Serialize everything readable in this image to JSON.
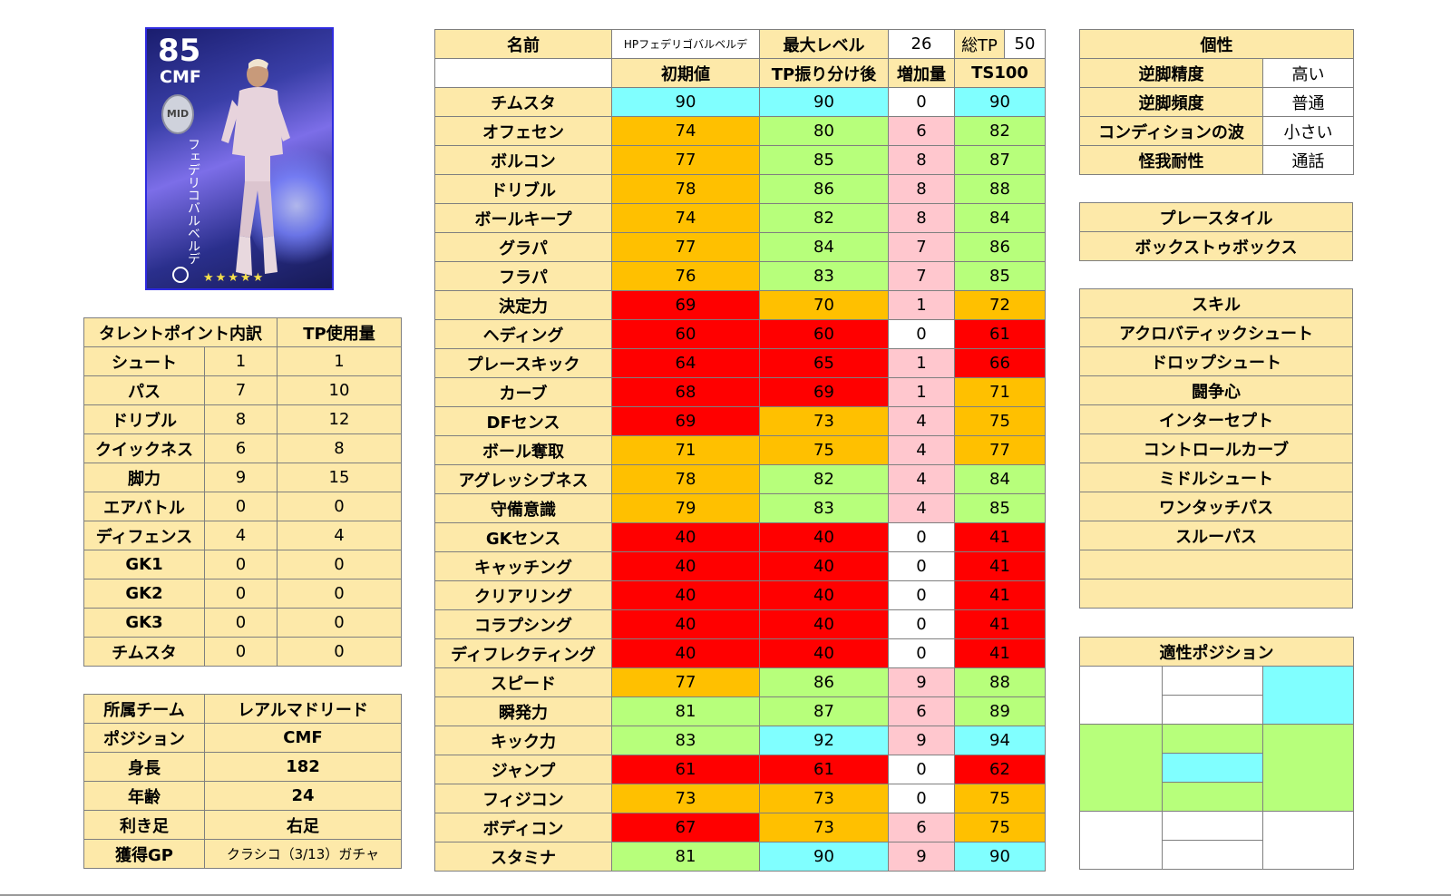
{
  "card": {
    "rating": "85",
    "position": "CMF",
    "badge": "MID",
    "vertical_name": "フェデリコバルベルデ",
    "stars": "★★★★★"
  },
  "talent": {
    "headers": [
      "タレントポイント内訳",
      "TP使用量"
    ],
    "rows": [
      [
        "シュート",
        "1",
        "1"
      ],
      [
        "パス",
        "7",
        "10"
      ],
      [
        "ドリブル",
        "8",
        "12"
      ],
      [
        "クイックネス",
        "6",
        "8"
      ],
      [
        "脚力",
        "9",
        "15"
      ],
      [
        "エアバトル",
        "0",
        "0"
      ],
      [
        "ディフェンス",
        "4",
        "4"
      ],
      [
        "GK1",
        "0",
        "0"
      ],
      [
        "GK2",
        "0",
        "0"
      ],
      [
        "GK3",
        "0",
        "0"
      ],
      [
        "チムスタ",
        "0",
        "0"
      ]
    ]
  },
  "profile": {
    "rows": [
      [
        "所属チーム",
        "レアルマドリード"
      ],
      [
        "ポジション",
        "CMF"
      ],
      [
        "身長",
        "182"
      ],
      [
        "年齢",
        "24"
      ],
      [
        "利き足",
        "右足"
      ],
      [
        "獲得GP",
        "クラシコ（3/13）ガチャ"
      ]
    ]
  },
  "stats_header": {
    "name_label": "名前",
    "name_value": "HPフェデリゴバルベルデ",
    "max_level_label": "最大レベル",
    "max_level_value": "26",
    "total_tp_label": "総TP",
    "total_tp_value": "50",
    "col_initial": "初期値",
    "col_after": "TP振り分け後",
    "col_increase": "増加量",
    "col_ts100": "TS100"
  },
  "stats": [
    {
      "name": "チムスタ",
      "initial": "90",
      "after": "90",
      "inc": "0",
      "ts": "90",
      "c": [
        "cyan",
        "cyan",
        "white",
        "cyan"
      ]
    },
    {
      "name": "オフェセン",
      "initial": "74",
      "after": "80",
      "inc": "6",
      "ts": "82",
      "c": [
        "orange",
        "green",
        "pink",
        "green"
      ]
    },
    {
      "name": "ボルコン",
      "initial": "77",
      "after": "85",
      "inc": "8",
      "ts": "87",
      "c": [
        "orange",
        "green",
        "pink",
        "green"
      ]
    },
    {
      "name": "ドリブル",
      "initial": "78",
      "after": "86",
      "inc": "8",
      "ts": "88",
      "c": [
        "orange",
        "green",
        "pink",
        "green"
      ]
    },
    {
      "name": "ボールキープ",
      "initial": "74",
      "after": "82",
      "inc": "8",
      "ts": "84",
      "c": [
        "orange",
        "green",
        "pink",
        "green"
      ]
    },
    {
      "name": "グラパ",
      "initial": "77",
      "after": "84",
      "inc": "7",
      "ts": "86",
      "c": [
        "orange",
        "green",
        "pink",
        "green"
      ]
    },
    {
      "name": "フラパ",
      "initial": "76",
      "after": "83",
      "inc": "7",
      "ts": "85",
      "c": [
        "orange",
        "green",
        "pink",
        "green"
      ]
    },
    {
      "name": "決定力",
      "initial": "69",
      "after": "70",
      "inc": "1",
      "ts": "72",
      "c": [
        "red",
        "orange",
        "pink",
        "orange"
      ]
    },
    {
      "name": "ヘディング",
      "initial": "60",
      "after": "60",
      "inc": "0",
      "ts": "61",
      "c": [
        "red",
        "red",
        "white",
        "red"
      ]
    },
    {
      "name": "プレースキック",
      "initial": "64",
      "after": "65",
      "inc": "1",
      "ts": "66",
      "c": [
        "red",
        "red",
        "pink",
        "red"
      ]
    },
    {
      "name": "カーブ",
      "initial": "68",
      "after": "69",
      "inc": "1",
      "ts": "71",
      "c": [
        "red",
        "red",
        "pink",
        "orange"
      ]
    },
    {
      "name": "DFセンス",
      "initial": "69",
      "after": "73",
      "inc": "4",
      "ts": "75",
      "c": [
        "red",
        "orange",
        "pink",
        "orange"
      ]
    },
    {
      "name": "ボール奪取",
      "initial": "71",
      "after": "75",
      "inc": "4",
      "ts": "77",
      "c": [
        "orange",
        "orange",
        "pink",
        "orange"
      ]
    },
    {
      "name": "アグレッシブネス",
      "initial": "78",
      "after": "82",
      "inc": "4",
      "ts": "84",
      "c": [
        "orange",
        "green",
        "pink",
        "green"
      ]
    },
    {
      "name": "守備意識",
      "initial": "79",
      "after": "83",
      "inc": "4",
      "ts": "85",
      "c": [
        "orange",
        "green",
        "pink",
        "green"
      ]
    },
    {
      "name": "GKセンス",
      "initial": "40",
      "after": "40",
      "inc": "0",
      "ts": "41",
      "c": [
        "red",
        "red",
        "white",
        "red"
      ]
    },
    {
      "name": "キャッチング",
      "initial": "40",
      "after": "40",
      "inc": "0",
      "ts": "41",
      "c": [
        "red",
        "red",
        "white",
        "red"
      ]
    },
    {
      "name": "クリアリング",
      "initial": "40",
      "after": "40",
      "inc": "0",
      "ts": "41",
      "c": [
        "red",
        "red",
        "white",
        "red"
      ]
    },
    {
      "name": "コラプシング",
      "initial": "40",
      "after": "40",
      "inc": "0",
      "ts": "41",
      "c": [
        "red",
        "red",
        "white",
        "red"
      ]
    },
    {
      "name": "ディフレクティング",
      "initial": "40",
      "after": "40",
      "inc": "0",
      "ts": "41",
      "c": [
        "red",
        "red",
        "white",
        "red"
      ]
    },
    {
      "name": "スピード",
      "initial": "77",
      "after": "86",
      "inc": "9",
      "ts": "88",
      "c": [
        "orange",
        "green",
        "pink",
        "green"
      ]
    },
    {
      "name": "瞬発力",
      "initial": "81",
      "after": "87",
      "inc": "6",
      "ts": "89",
      "c": [
        "green",
        "green",
        "pink",
        "green"
      ]
    },
    {
      "name": "キック力",
      "initial": "83",
      "after": "92",
      "inc": "9",
      "ts": "94",
      "c": [
        "green",
        "cyan",
        "pink",
        "cyan"
      ]
    },
    {
      "name": "ジャンプ",
      "initial": "61",
      "after": "61",
      "inc": "0",
      "ts": "62",
      "c": [
        "red",
        "red",
        "white",
        "red"
      ]
    },
    {
      "name": "フィジコン",
      "initial": "73",
      "after": "73",
      "inc": "0",
      "ts": "75",
      "c": [
        "orange",
        "orange",
        "white",
        "orange"
      ]
    },
    {
      "name": "ボディコン",
      "initial": "67",
      "after": "73",
      "inc": "6",
      "ts": "75",
      "c": [
        "red",
        "orange",
        "pink",
        "orange"
      ]
    },
    {
      "name": "スタミナ",
      "initial": "81",
      "after": "90",
      "inc": "9",
      "ts": "90",
      "c": [
        "green",
        "cyan",
        "pink",
        "cyan"
      ]
    }
  ],
  "personality": {
    "title": "個性",
    "rows": [
      [
        "逆脚精度",
        "高い"
      ],
      [
        "逆脚頻度",
        "普通"
      ],
      [
        "コンディションの波",
        "小さい"
      ],
      [
        "怪我耐性",
        "通話"
      ]
    ]
  },
  "playstyle": {
    "title": "プレースタイル",
    "value": "ボックストゥボックス"
  },
  "skills": {
    "title": "スキル",
    "items": [
      "アクロバティックシュート",
      "ドロップシュート",
      "闘争心",
      "インターセプト",
      "コントロールカーブ",
      "ミドルシュート",
      "ワンタッチパス",
      "スルーパス",
      "",
      ""
    ]
  },
  "positions": {
    "title": "適性ポジション"
  }
}
